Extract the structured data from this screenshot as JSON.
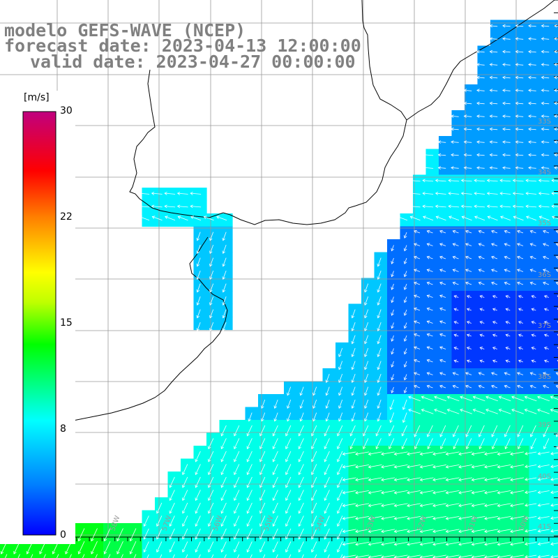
{
  "title": {
    "line1": "modelo GEFS-WAVE (NCEP)",
    "line2": "forecast date: 2023-04-13 12:00:00",
    "line3": "valid date: 2023-04-27 00:00:00"
  },
  "colorbar": {
    "unit": "[m/s]",
    "ticks": [
      "30",
      "22",
      "15",
      "8",
      "0"
    ],
    "tick_values": [
      30,
      22,
      15,
      8,
      0
    ],
    "range": [
      0,
      30
    ],
    "colors": [
      "#0000ff",
      "#0080ff",
      "#00ffff",
      "#00ff00",
      "#ffff00",
      "#ff8000",
      "#ff0000",
      "#c0007f"
    ]
  },
  "map": {
    "lat_labels": [
      "33S",
      "34S",
      "35S",
      "36S",
      "37S",
      "38S",
      "39S",
      "40S",
      "41S"
    ],
    "lon_labels": [
      "60W",
      "59W",
      "58W",
      "57W",
      "56W",
      "55W",
      "54W",
      "53W",
      "52W",
      "51W",
      "50W"
    ],
    "arrow_color": "#ffffff",
    "coast_color": "#000000",
    "grid_color": "#999999"
  }
}
